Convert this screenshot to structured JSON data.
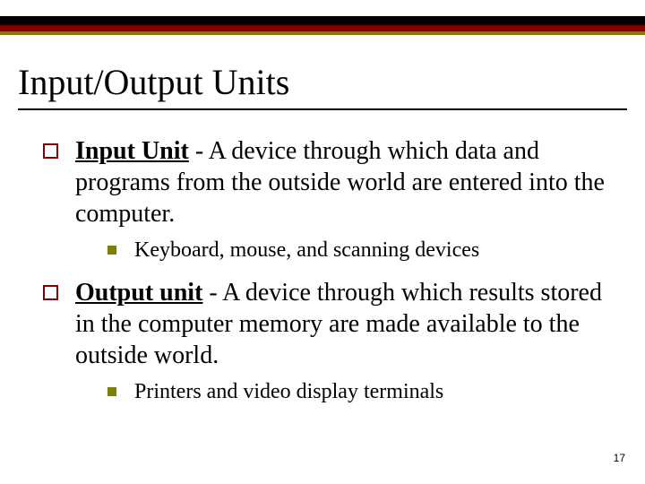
{
  "colors": {
    "bar_dark": "#000000",
    "bar_maroon": "#800000",
    "bar_olive": "#808000",
    "background": "#ffffff",
    "text": "#000000"
  },
  "title": "Input/Output Units",
  "items": [
    {
      "term": "Input Unit",
      "definition": " - A device through which data and programs from the outside world are entered into the computer.",
      "sub": [
        "Keyboard, mouse, and scanning devices"
      ]
    },
    {
      "term": "Output unit",
      "definition": " - A device through which results stored in the computer memory are made available to the outside world.",
      "sub": [
        "Printers and video display terminals"
      ]
    }
  ],
  "page_number": "17"
}
